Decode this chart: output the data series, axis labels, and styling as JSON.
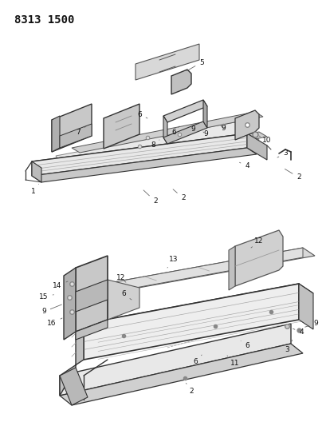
{
  "title": "8313 1500",
  "background_color": "#ffffff",
  "title_fontsize": 10,
  "fig_width": 4.1,
  "fig_height": 5.33,
  "dpi": 100,
  "line_color": "#555555",
  "dark_color": "#333333",
  "light_fill": "#e8e8e8",
  "mid_fill": "#cccccc",
  "dark_fill": "#aaaaaa"
}
